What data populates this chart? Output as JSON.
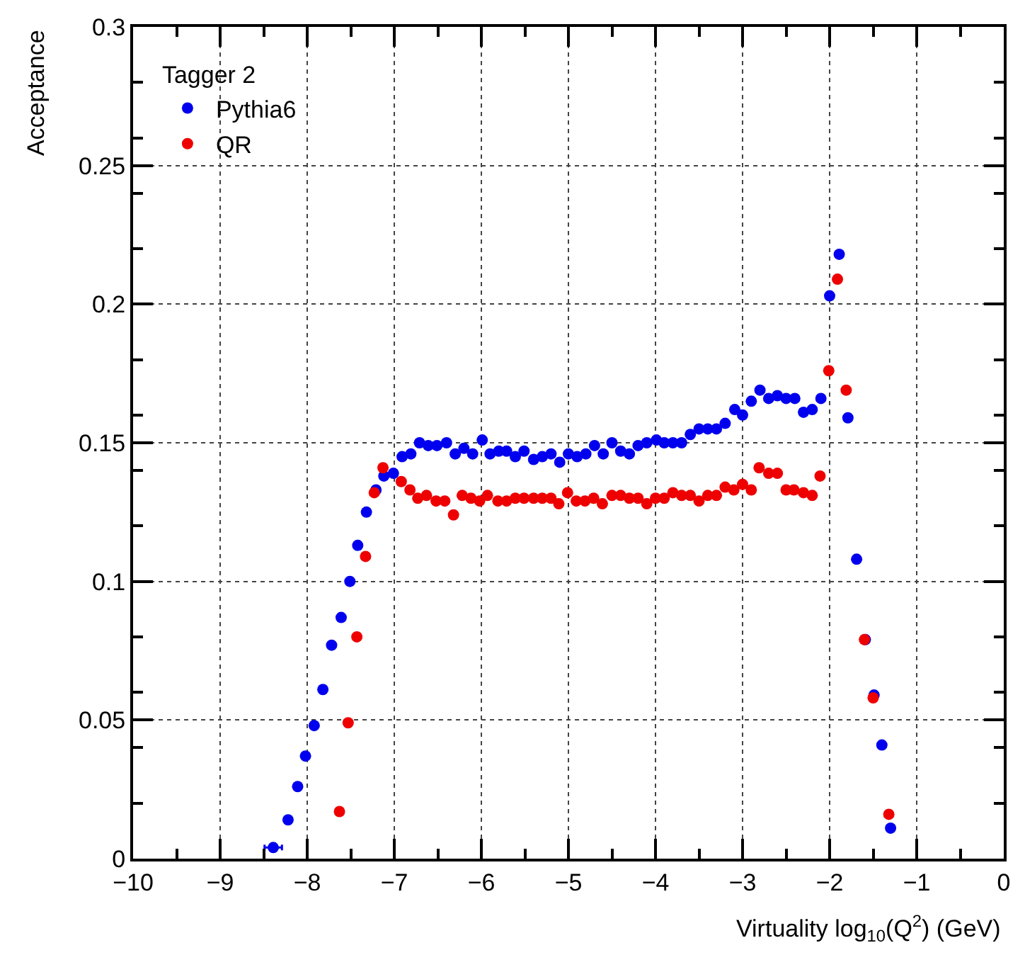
{
  "chart_data": {
    "type": "scatter",
    "xlabel": "Virtuality log$_{10}$(Q$^{2}$) (GeV)",
    "ylabel": "Acceptance",
    "legend_title": "Tagger 2",
    "xlim": [
      -10,
      0
    ],
    "xticks": [
      -10,
      -9,
      -8,
      -7,
      -6,
      -5,
      -4,
      -3,
      -2,
      -1,
      0
    ],
    "ylim": [
      0,
      0.3
    ],
    "yticks": [
      0,
      0.05,
      0.1,
      0.15,
      0.2,
      0.25,
      0.3
    ],
    "grid": true,
    "legend": "top left",
    "marker": "circle",
    "series": [
      {
        "name": "Pythia6",
        "color": "#0000ee",
        "x": [
          -8.39,
          -8.22,
          -8.11,
          -8.02,
          -7.92,
          -7.82,
          -7.72,
          -7.61,
          -7.51,
          -7.42,
          -7.32,
          -7.21,
          -7.12,
          -7.01,
          -6.91,
          -6.81,
          -6.71,
          -6.61,
          -6.51,
          -6.4,
          -6.3,
          -6.2,
          -6.1,
          -5.99,
          -5.9,
          -5.8,
          -5.71,
          -5.61,
          -5.51,
          -5.4,
          -5.3,
          -5.2,
          -5.1,
          -5.0,
          -4.9,
          -4.8,
          -4.7,
          -4.6,
          -4.5,
          -4.4,
          -4.3,
          -4.2,
          -4.1,
          -3.99,
          -3.9,
          -3.8,
          -3.7,
          -3.6,
          -3.5,
          -3.4,
          -3.3,
          -3.2,
          -3.09,
          -3.0,
          -2.9,
          -2.8,
          -2.7,
          -2.6,
          -2.5,
          -2.4,
          -2.3,
          -2.2,
          -2.1,
          -2.0,
          -1.89,
          -1.79,
          -1.69,
          -1.59,
          -1.49,
          -1.4,
          -1.3
        ],
        "values": [
          0.004,
          0.014,
          0.026,
          0.037,
          0.048,
          0.061,
          0.077,
          0.087,
          0.1,
          0.113,
          0.125,
          0.133,
          0.138,
          0.139,
          0.145,
          0.146,
          0.15,
          0.149,
          0.149,
          0.15,
          0.146,
          0.148,
          0.146,
          0.151,
          0.146,
          0.147,
          0.147,
          0.145,
          0.147,
          0.144,
          0.145,
          0.146,
          0.143,
          0.146,
          0.145,
          0.146,
          0.149,
          0.146,
          0.15,
          0.147,
          0.146,
          0.149,
          0.15,
          0.151,
          0.15,
          0.15,
          0.15,
          0.153,
          0.155,
          0.155,
          0.155,
          0.157,
          0.162,
          0.16,
          0.165,
          0.169,
          0.166,
          0.167,
          0.166,
          0.166,
          0.161,
          0.162,
          0.166,
          0.203,
          0.218,
          0.159,
          0.108,
          0.079,
          0.059,
          0.041,
          0.011
        ],
        "xerrors": [
          0.1,
          null,
          null,
          null,
          null,
          null,
          null,
          null,
          null,
          null,
          null,
          null,
          null,
          null,
          null,
          null,
          null,
          null,
          null,
          null,
          null,
          null,
          null,
          null,
          null,
          null,
          null,
          null,
          null,
          null,
          null,
          null,
          null,
          null,
          null,
          null,
          null,
          null,
          null,
          null,
          null,
          null,
          null,
          null,
          null,
          null,
          null,
          null,
          null,
          null,
          null,
          null,
          null,
          null,
          null,
          null,
          null,
          null,
          null,
          null,
          null,
          null,
          null,
          null,
          null,
          null,
          null,
          null,
          null,
          null,
          null
        ]
      },
      {
        "name": "QR",
        "color": "#ee0000",
        "x": [
          -7.63,
          -7.53,
          -7.43,
          -7.33,
          -7.23,
          -7.13,
          -6.92,
          -6.82,
          -6.73,
          -6.63,
          -6.52,
          -6.42,
          -6.32,
          -6.22,
          -6.12,
          -6.02,
          -5.93,
          -5.81,
          -5.71,
          -5.61,
          -5.51,
          -5.4,
          -5.3,
          -5.2,
          -5.11,
          -5.01,
          -4.91,
          -4.81,
          -4.71,
          -4.61,
          -4.5,
          -4.4,
          -4.3,
          -4.2,
          -4.1,
          -4.0,
          -3.9,
          -3.8,
          -3.7,
          -3.6,
          -3.5,
          -3.4,
          -3.3,
          -3.2,
          -3.1,
          -3.0,
          -2.9,
          -2.81,
          -2.7,
          -2.6,
          -2.5,
          -2.41,
          -2.3,
          -2.2,
          -2.11,
          -2.01,
          -1.91,
          -1.81,
          -1.6,
          -1.5,
          -1.32
        ],
        "values": [
          0.017,
          0.049,
          0.08,
          0.109,
          0.132,
          0.141,
          0.136,
          0.133,
          0.13,
          0.131,
          0.129,
          0.129,
          0.124,
          0.131,
          0.13,
          0.129,
          0.131,
          0.129,
          0.129,
          0.13,
          0.13,
          0.13,
          0.13,
          0.13,
          0.128,
          0.132,
          0.129,
          0.129,
          0.13,
          0.128,
          0.131,
          0.131,
          0.13,
          0.13,
          0.128,
          0.13,
          0.13,
          0.132,
          0.131,
          0.131,
          0.129,
          0.131,
          0.131,
          0.134,
          0.133,
          0.135,
          0.133,
          0.141,
          0.139,
          0.139,
          0.133,
          0.133,
          0.132,
          0.131,
          0.138,
          0.176,
          0.209,
          0.169,
          0.079,
          0.058,
          0.016
        ]
      }
    ]
  }
}
